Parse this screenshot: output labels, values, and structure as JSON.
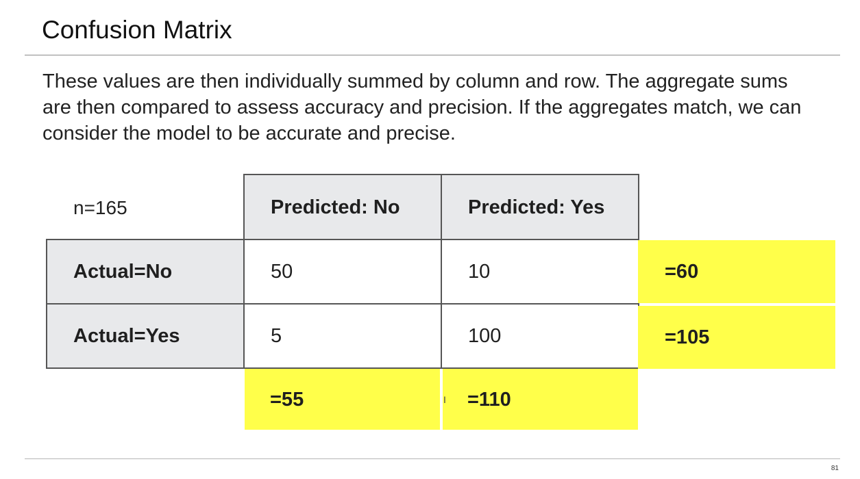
{
  "slide": {
    "title": "Confusion Matrix",
    "body": "These values are then individually summed by column and row. The aggregate sums are then compared to assess accuracy and precision. If the aggregates match, we can consider the model to be accurate and precise.",
    "page_number": "81"
  },
  "matrix": {
    "n_label": "n=165",
    "col_headers": [
      "Predicted: No",
      "Predicted: Yes"
    ],
    "rows": [
      {
        "label": "Actual=No",
        "values": [
          "50",
          "10"
        ],
        "row_sum": "=60"
      },
      {
        "label": "Actual=Yes",
        "values": [
          "5",
          "100"
        ],
        "row_sum": "=105"
      }
    ],
    "col_sums": [
      "=55",
      "=110"
    ],
    "highlight_color": "#ffff4a",
    "header_color": "#e8e9eb"
  },
  "cursor_glyph": "I"
}
